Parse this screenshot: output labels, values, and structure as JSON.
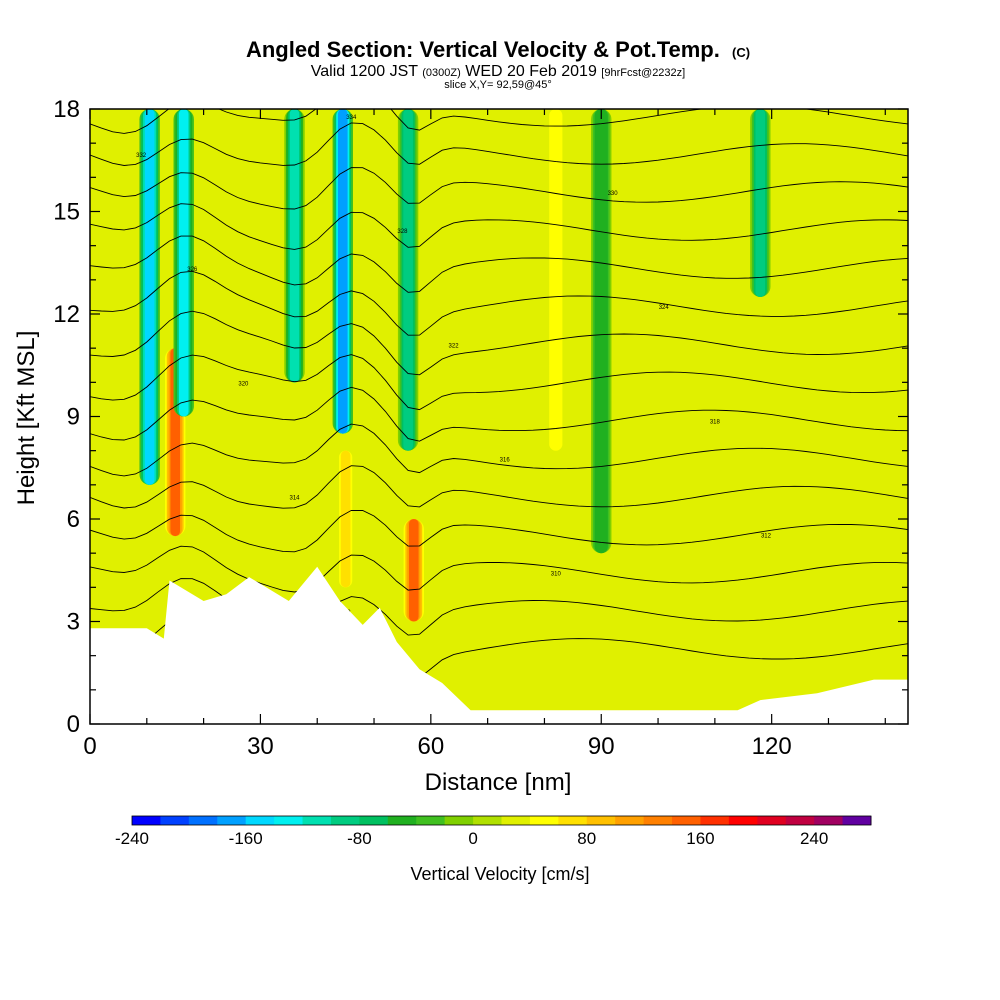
{
  "header": {
    "title": "Angled Section: Vertical Velocity & Pot.Temp.",
    "title_tag": "(C)",
    "valid_prefix": "Valid 1200 JST",
    "valid_zulu": "(0300Z)",
    "valid_date": "WED 20 Feb 2019",
    "forecast_tag": "[9hrFcst@2232z]",
    "slice": "slice X,Y= 92,59@45°"
  },
  "chart_data": {
    "type": "heatmap",
    "xlabel": "Distance [nm]",
    "ylabel": "Height [Kft MSL]",
    "xlim": [
      0,
      144
    ],
    "ylim": [
      0,
      18
    ],
    "x_ticks": [
      "0",
      "30",
      "60",
      "90",
      "120"
    ],
    "y_ticks": [
      "0",
      "3",
      "6",
      "9",
      "12",
      "15",
      "18"
    ],
    "colorbar": {
      "label": "Vertical Velocity [cm/s]",
      "min": -240,
      "max": 280,
      "step": 20,
      "tick_labels": [
        "-240",
        "-160",
        "-80",
        "0",
        "80",
        "160",
        "240"
      ],
      "tick_values": [
        -240,
        -160,
        -80,
        0,
        80,
        160,
        240
      ],
      "colors": [
        "#0000ff",
        "#0040ff",
        "#0070ff",
        "#00a0ff",
        "#00d8ff",
        "#00f0f0",
        "#00e0b0",
        "#00cc80",
        "#00c060",
        "#20b020",
        "#40c020",
        "#80d000",
        "#b0e000",
        "#e0f000",
        "#ffff00",
        "#ffe000",
        "#ffc000",
        "#ffa000",
        "#ff8000",
        "#ff6000",
        "#ff3000",
        "#ff0000",
        "#e00020",
        "#c00040",
        "#a00060",
        "#6000a0"
      ]
    },
    "background_w": 10,
    "updraft_bands": [
      {
        "x": 15,
        "y0": 5.5,
        "y1": 11,
        "w": 150
      },
      {
        "x": 45,
        "y0": 4,
        "y1": 8,
        "w": 60
      },
      {
        "x": 82,
        "y0": 8,
        "y1": 18,
        "w": 50
      },
      {
        "x": 57,
        "y0": 3,
        "y1": 6,
        "w": 150
      }
    ],
    "downdraft_bands": [
      {
        "x": 10.5,
        "y0": 7,
        "y1": 18,
        "w": -160
      },
      {
        "x": 16.5,
        "y0": 9,
        "y1": 18,
        "w": -130
      },
      {
        "x": 36,
        "y0": 10,
        "y1": 18,
        "w": -110
      },
      {
        "x": 44.5,
        "y0": 8.5,
        "y1": 18,
        "w": -170
      },
      {
        "x": 56,
        "y0": 8,
        "y1": 18,
        "w": -90
      },
      {
        "x": 90,
        "y0": 5,
        "y1": 18,
        "w": -60
      },
      {
        "x": 118,
        "y0": 12.5,
        "y1": 18,
        "w": -90
      }
    ],
    "terrain": [
      [
        0,
        2.8
      ],
      [
        10,
        2.8
      ],
      [
        13,
        2.5
      ],
      [
        14,
        4.2
      ],
      [
        20,
        3.6
      ],
      [
        24,
        3.8
      ],
      [
        28,
        4.3
      ],
      [
        31,
        4.0
      ],
      [
        35,
        3.6
      ],
      [
        40,
        4.6
      ],
      [
        44,
        3.6
      ],
      [
        48,
        2.9
      ],
      [
        51,
        3.4
      ],
      [
        54,
        2.4
      ],
      [
        58,
        1.6
      ],
      [
        62,
        1.2
      ],
      [
        67,
        0.4
      ],
      [
        84,
        0.4
      ],
      [
        92,
        0.4
      ],
      [
        114,
        0.4
      ],
      [
        118,
        0.7
      ],
      [
        128,
        0.9
      ],
      [
        138,
        1.3
      ],
      [
        144,
        1.3
      ]
    ],
    "theta_contour_labels": [
      "306",
      "308",
      "310",
      "312",
      "314",
      "316",
      "318",
      "320",
      "322",
      "324",
      "326",
      "328",
      "330",
      "332",
      "334"
    ]
  }
}
